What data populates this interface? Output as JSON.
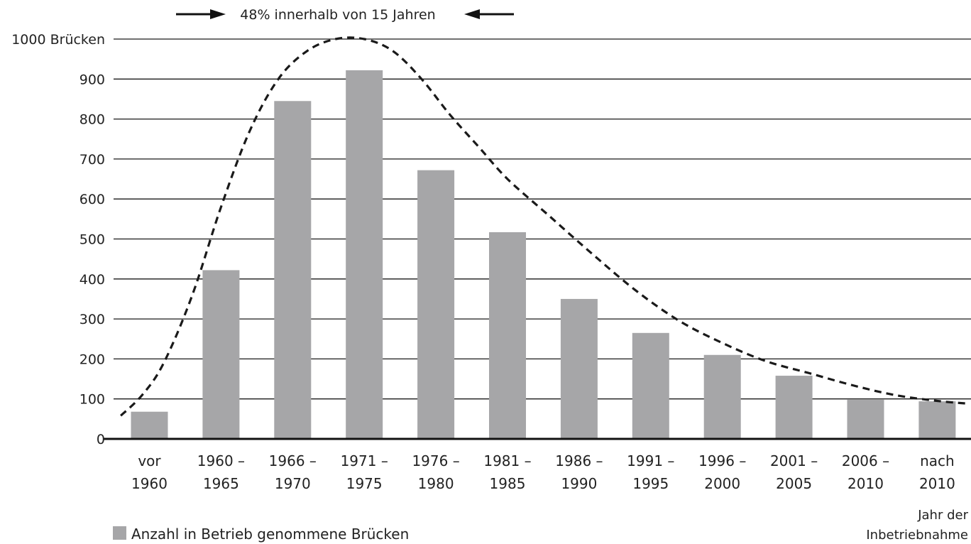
{
  "chart_data": {
    "type": "bar",
    "annotation": "48% innerhalb von 15 Jahren",
    "ylabel_top": "1000 Brücken",
    "yticks": [
      0,
      100,
      200,
      300,
      400,
      500,
      600,
      700,
      800,
      900
    ],
    "ylim": [
      0,
      1000
    ],
    "categories": [
      [
        "vor",
        "1960"
      ],
      [
        "1960 –",
        "1965"
      ],
      [
        "1966 –",
        "1970"
      ],
      [
        "1971 –",
        "1975"
      ],
      [
        "1976 –",
        "1980"
      ],
      [
        "1981 –",
        "1985"
      ],
      [
        "1986 –",
        "1990"
      ],
      [
        "1991 –",
        "1995"
      ],
      [
        "1996 –",
        "2000"
      ],
      [
        "2001 –",
        "2005"
      ],
      [
        "2006 –",
        "2010"
      ],
      [
        "nach",
        "2010"
      ]
    ],
    "series": [
      {
        "name": "Anzahl in Betrieb genommene Brücken",
        "color": "#a6a6a8",
        "values": [
          68,
          422,
          845,
          922,
          672,
          517,
          350,
          265,
          210,
          158,
          98,
          94
        ]
      }
    ],
    "trend_curve": {
      "style": "dashed",
      "color": "#1a1a1a",
      "x": [
        -0.4,
        -0.1,
        0.2,
        0.6,
        1.0,
        1.4,
        1.8,
        2.2,
        2.6,
        3.0,
        3.4,
        3.8,
        4.2,
        4.6,
        5.0,
        5.6,
        6.2,
        6.8,
        7.4,
        8.0,
        8.6,
        9.2,
        9.8,
        10.4,
        11.0,
        11.45
      ],
      "y": [
        58,
        110,
        190,
        360,
        580,
        770,
        900,
        970,
        1000,
        1000,
        970,
        900,
        810,
        730,
        650,
        555,
        460,
        370,
        295,
        240,
        195,
        165,
        135,
        110,
        95,
        88
      ]
    },
    "xlabel": [
      "Jahr der",
      "Inbetriebnahme"
    ],
    "legend": {
      "position": "bottom-left"
    },
    "grid": true
  }
}
